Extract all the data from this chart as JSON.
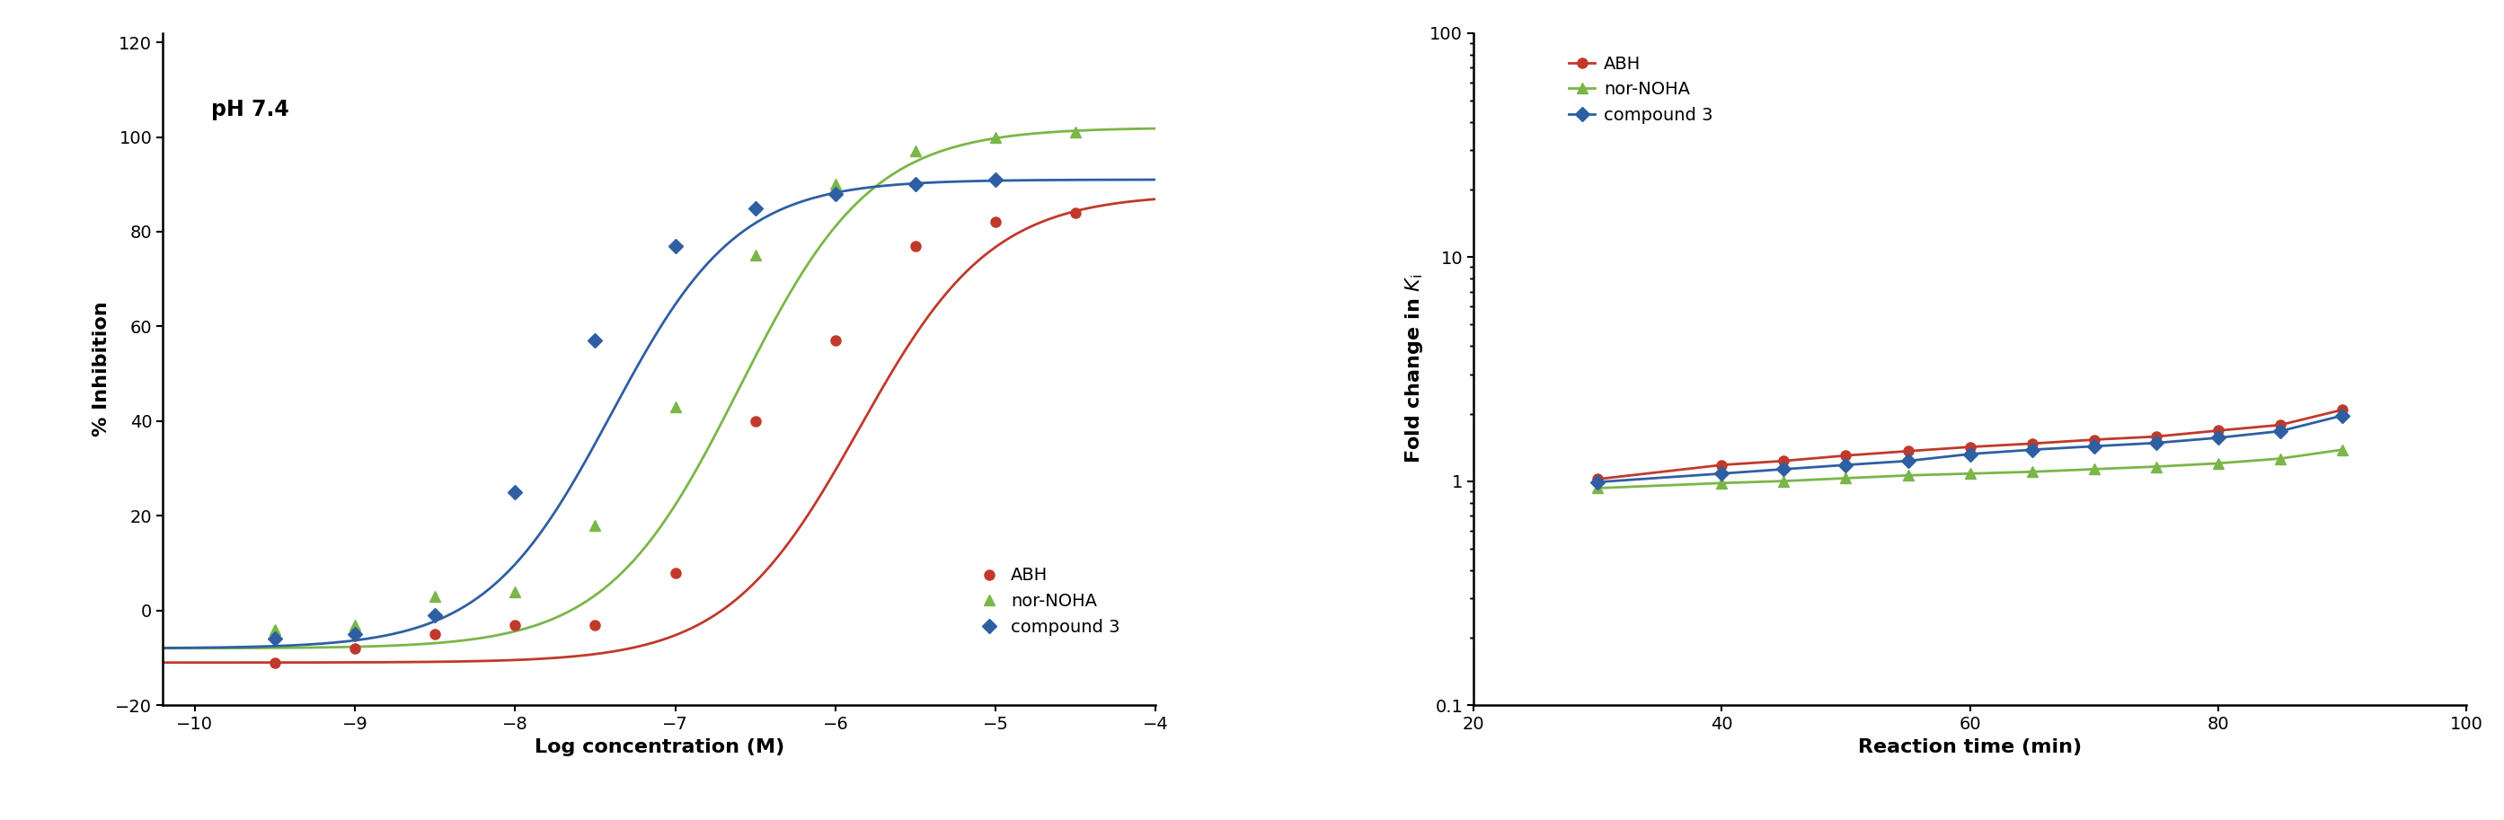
{
  "left_panel": {
    "annotation": "pH 7.4",
    "xlabel": "Log concentration (M)",
    "ylabel": "% Inhibition",
    "xlim": [
      -10.2,
      -4.0
    ],
    "ylim": [
      -20,
      122
    ],
    "xticks": [
      -10,
      -9,
      -8,
      -7,
      -6,
      -5,
      -4
    ],
    "yticks": [
      -20,
      0,
      20,
      40,
      60,
      80,
      100,
      120
    ],
    "series": [
      {
        "name": "ABH",
        "color": "#c1392b",
        "marker": "o",
        "ec50_log": -5.85,
        "hill": 1.05,
        "top": 88.0,
        "bottom": -11.0,
        "x_data": [
          -9.5,
          -9.0,
          -8.5,
          -8.0,
          -7.5,
          -7.0,
          -6.5,
          -6.0,
          -5.5,
          -5.0,
          -4.5
        ],
        "y_data": [
          -11,
          -8,
          -5,
          -3,
          -3,
          8,
          40,
          57,
          77,
          82,
          84
        ]
      },
      {
        "name": "nor-NOHA",
        "color": "#7ab648",
        "marker": "^",
        "ec50_log": -6.6,
        "hill": 1.05,
        "top": 102.0,
        "bottom": -8.0,
        "x_data": [
          -9.5,
          -9.0,
          -8.5,
          -8.0,
          -7.5,
          -7.0,
          -6.5,
          -6.0,
          -5.5,
          -5.0,
          -4.5
        ],
        "y_data": [
          -4,
          -3,
          3,
          4,
          18,
          43,
          75,
          90,
          97,
          100,
          101
        ]
      },
      {
        "name": "compound 3",
        "color": "#2e5fa3",
        "marker": "D",
        "ec50_log": -7.4,
        "hill": 1.1,
        "top": 91.0,
        "bottom": -8.0,
        "x_data": [
          -9.5,
          -9.0,
          -8.5,
          -8.0,
          -7.5,
          -7.0,
          -6.5,
          -6.0,
          -5.5,
          -5.0
        ],
        "y_data": [
          -6,
          -5,
          -1,
          25,
          57,
          77,
          85,
          88,
          90,
          91
        ]
      }
    ]
  },
  "right_panel": {
    "xlabel": "Reaction time (min)",
    "xlim": [
      20,
      100
    ],
    "ylim_log": [
      0.1,
      100
    ],
    "xticks": [
      20,
      40,
      60,
      80,
      100
    ],
    "series": [
      {
        "name": "ABH",
        "color": "#c1392b",
        "marker": "o",
        "x_data": [
          30,
          40,
          45,
          50,
          55,
          60,
          65,
          70,
          75,
          80,
          85,
          90
        ],
        "y_data": [
          1.02,
          1.18,
          1.23,
          1.3,
          1.36,
          1.42,
          1.47,
          1.53,
          1.58,
          1.68,
          1.78,
          2.08
        ]
      },
      {
        "name": "nor-NOHA",
        "color": "#7ab648",
        "marker": "^",
        "x_data": [
          30,
          40,
          45,
          50,
          55,
          60,
          65,
          70,
          75,
          80,
          85,
          90
        ],
        "y_data": [
          0.93,
          0.98,
          1.0,
          1.03,
          1.06,
          1.08,
          1.1,
          1.13,
          1.16,
          1.2,
          1.26,
          1.38
        ]
      },
      {
        "name": "compound 3",
        "color": "#2e5fa3",
        "marker": "D",
        "x_data": [
          30,
          40,
          45,
          50,
          55,
          60,
          65,
          70,
          75,
          80,
          85,
          90
        ],
        "y_data": [
          0.99,
          1.08,
          1.13,
          1.18,
          1.23,
          1.32,
          1.38,
          1.43,
          1.48,
          1.56,
          1.67,
          1.96
        ]
      }
    ]
  },
  "lw": 2.0,
  "ms": 8,
  "spine_lw": 1.8,
  "font_labels": 16,
  "font_ticks": 14,
  "font_legend": 14,
  "font_annot": 17
}
